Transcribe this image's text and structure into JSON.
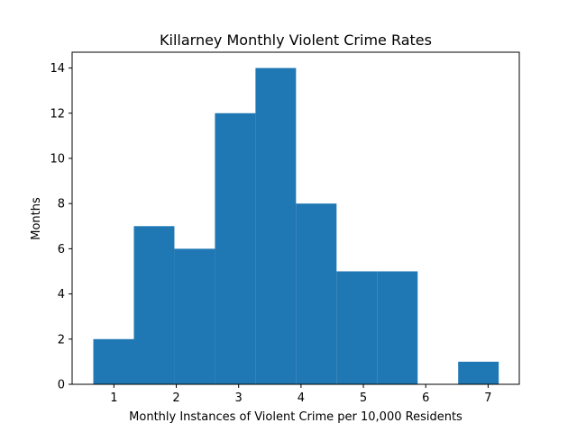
{
  "chart_data": {
    "type": "bar",
    "title": "Killarney Monthly Violent Crime Rates",
    "xlabel": "Monthly Instances of Violent Crime per 10,000 Residents",
    "ylabel": "Months",
    "xlim": [
      0.33,
      7.5
    ],
    "ylim": [
      0,
      14.7
    ],
    "xticks": [
      1,
      2,
      3,
      4,
      5,
      6,
      7
    ],
    "yticks": [
      0,
      2,
      4,
      6,
      8,
      10,
      12,
      14
    ],
    "bin_edges": [
      0.67,
      1.32,
      1.97,
      2.62,
      3.27,
      3.92,
      4.57,
      5.22,
      5.87,
      6.52,
      7.17
    ],
    "counts": [
      2,
      7,
      6,
      12,
      14,
      8,
      5,
      5,
      0,
      1
    ],
    "bar_color": "#1f77b4",
    "grid": false
  }
}
